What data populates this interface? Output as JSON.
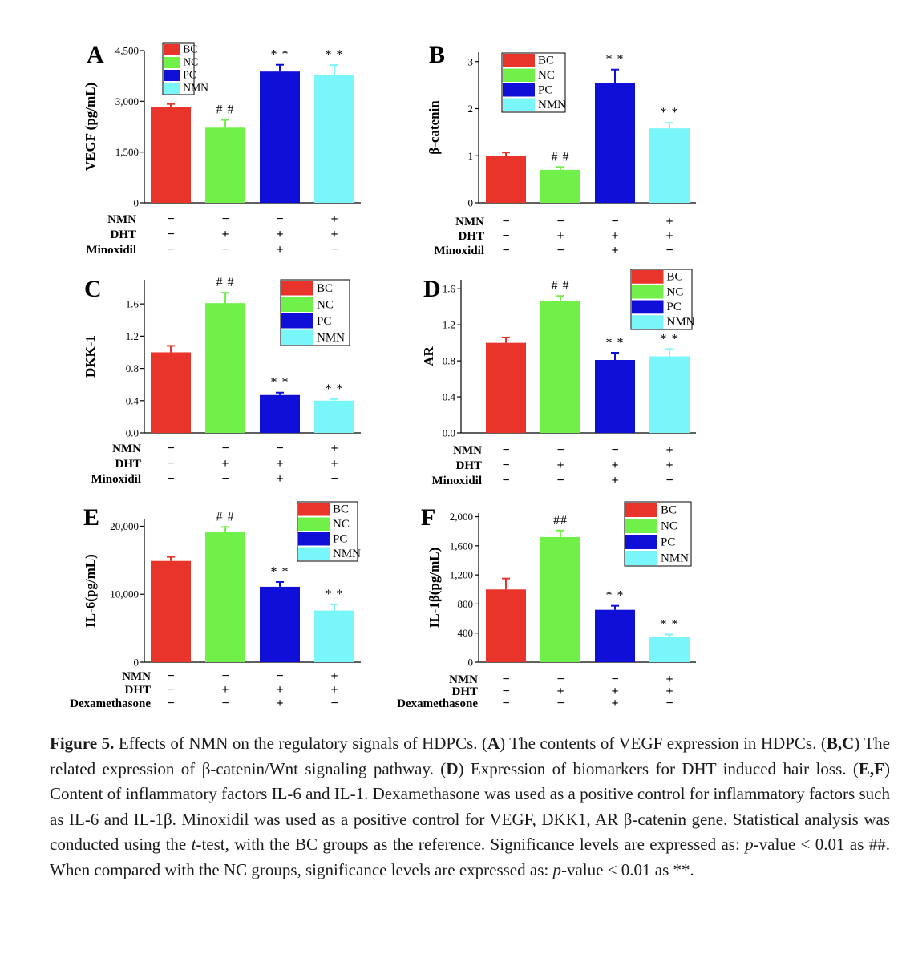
{
  "group_colors": {
    "BC": "#e8342a",
    "NC": "#72f04a",
    "PC": "#0f0fd8",
    "NMN": "#78f6fa"
  },
  "chart_data": [
    {
      "type": "bar",
      "panel": "A",
      "title": "",
      "ylabel": "VEGF (pg/mL)",
      "ylim": [
        0,
        4500
      ],
      "yticks": [
        0,
        1500,
        3000,
        4500
      ],
      "ytick_labels": [
        "0",
        "1,500",
        "3,000",
        "4,500"
      ],
      "categories": [
        "BC",
        "NC",
        "PC",
        "NMN"
      ],
      "values": [
        2820,
        2220,
        3880,
        3790
      ],
      "errors": [
        100,
        230,
        200,
        280
      ],
      "marks": [
        "",
        "# #",
        "* *",
        "* *"
      ],
      "legend": [
        "BC",
        "NC",
        "PC",
        "NMN"
      ],
      "legend_position": "top-left",
      "conditions": [
        {
          "label": "NMN",
          "values": [
            "−",
            "−",
            "−",
            "+"
          ]
        },
        {
          "label": "DHT",
          "values": [
            "−",
            "+",
            "+",
            "+"
          ]
        },
        {
          "label": "Minoxidil",
          "values": [
            "−",
            "−",
            "+",
            "−"
          ]
        }
      ]
    },
    {
      "type": "bar",
      "panel": "B",
      "title": "",
      "ylabel": "β-catenin",
      "ylim": [
        0,
        3.2
      ],
      "yticks": [
        0,
        1,
        2,
        3
      ],
      "ytick_labels": [
        "0",
        "1",
        "2",
        "3"
      ],
      "categories": [
        "BC",
        "NC",
        "PC",
        "NMN"
      ],
      "values": [
        1.0,
        0.7,
        2.55,
        1.58
      ],
      "errors": [
        0.07,
        0.06,
        0.28,
        0.12
      ],
      "marks": [
        "",
        "# #",
        "* *",
        "* *"
      ],
      "legend": [
        "BC",
        "NC",
        "PC",
        "NMN"
      ],
      "legend_position": "top-left",
      "conditions": [
        {
          "label": "NMN",
          "values": [
            "−",
            "−",
            "−",
            "+"
          ]
        },
        {
          "label": "DHT",
          "values": [
            "−",
            "+",
            "+",
            "+"
          ]
        },
        {
          "label": "Minoxidil",
          "values": [
            "−",
            "−",
            "+",
            "−"
          ]
        }
      ]
    },
    {
      "type": "bar",
      "panel": "C",
      "title": "",
      "ylabel": "DKK-1",
      "ylim": [
        0,
        1.9
      ],
      "yticks": [
        0,
        0.4,
        0.8,
        1.2,
        1.6
      ],
      "ytick_labels": [
        "0.0",
        "0.4",
        "0.8",
        "1.2",
        "1.6"
      ],
      "categories": [
        "BC",
        "NC",
        "PC",
        "NMN"
      ],
      "values": [
        1.0,
        1.61,
        0.47,
        0.4
      ],
      "errors": [
        0.08,
        0.13,
        0.03,
        0.02
      ],
      "marks": [
        "",
        "# #",
        "* *",
        "* *"
      ],
      "legend": [
        "BC",
        "NC",
        "PC",
        "NMN"
      ],
      "legend_position": "top-right",
      "conditions": [
        {
          "label": "NMN",
          "values": [
            "−",
            "−",
            "−",
            "+"
          ]
        },
        {
          "label": "DHT",
          "values": [
            "−",
            "+",
            "+",
            "+"
          ]
        },
        {
          "label": "Minoxidil",
          "values": [
            "−",
            "−",
            "+",
            "−"
          ]
        }
      ]
    },
    {
      "type": "bar",
      "panel": "D",
      "title": "",
      "ylabel": "AR",
      "ylim": [
        0,
        1.7
      ],
      "yticks": [
        0,
        0.4,
        0.8,
        1.2,
        1.6
      ],
      "ytick_labels": [
        "0.0",
        "0.4",
        "0.8",
        "1.2",
        "1.6"
      ],
      "categories": [
        "BC",
        "NC",
        "PC",
        "NMN"
      ],
      "values": [
        1.0,
        1.46,
        0.81,
        0.85
      ],
      "errors": [
        0.06,
        0.06,
        0.08,
        0.08
      ],
      "marks": [
        "",
        "# #",
        "* *",
        "* *"
      ],
      "legend": [
        "BC",
        "NC",
        "PC",
        "NMN"
      ],
      "legend_position": "top-right",
      "conditions": [
        {
          "label": "NMN",
          "values": [
            "−",
            "−",
            "−",
            "+"
          ]
        },
        {
          "label": "DHT",
          "values": [
            "−",
            "+",
            "+",
            "+"
          ]
        },
        {
          "label": "Minoxidil",
          "values": [
            "−",
            "−",
            "+",
            "−"
          ]
        }
      ]
    },
    {
      "type": "bar",
      "panel": "E",
      "title": "",
      "ylabel": "IL-6(pg/mL)",
      "ylim": [
        0,
        21000
      ],
      "yticks": [
        0,
        10000,
        20000
      ],
      "ytick_labels": [
        "0",
        "10,000",
        "20,000"
      ],
      "categories": [
        "BC",
        "NC",
        "PC",
        "NMN"
      ],
      "values": [
        14900,
        19200,
        11100,
        7600
      ],
      "errors": [
        600,
        700,
        700,
        900
      ],
      "marks": [
        "",
        "# #",
        "* *",
        "* *"
      ],
      "legend": [
        "BC",
        "NC",
        "PC",
        "NMN"
      ],
      "legend_position": "top-right",
      "conditions": [
        {
          "label": "NMN",
          "values": [
            "−",
            "−",
            "−",
            "+"
          ]
        },
        {
          "label": "DHT",
          "values": [
            "−",
            "+",
            "+",
            "+"
          ]
        },
        {
          "label": "Dexamethasone",
          "values": [
            "−",
            "−",
            "+",
            "−"
          ]
        }
      ]
    },
    {
      "type": "bar",
      "panel": "F",
      "title": "",
      "ylabel": "IL-1β(pg/mL)",
      "ylim": [
        0,
        2050
      ],
      "yticks": [
        0,
        400,
        800,
        1200,
        1600,
        2000
      ],
      "ytick_labels": [
        "0",
        "400",
        "800",
        "1,200",
        "1,600",
        "2,000"
      ],
      "categories": [
        "BC",
        "NC",
        "PC",
        "NMN"
      ],
      "values": [
        1000,
        1720,
        720,
        350
      ],
      "errors": [
        150,
        90,
        55,
        30
      ],
      "marks": [
        "",
        "##",
        "* *",
        "* *"
      ],
      "legend": [
        "BC",
        "NC",
        "PC",
        "NMN"
      ],
      "legend_position": "top-right",
      "conditions": [
        {
          "label": "NMN",
          "values": [
            "−",
            "−",
            "−",
            "+"
          ]
        },
        {
          "label": "DHT",
          "values": [
            "−",
            "+",
            "+",
            "+"
          ]
        },
        {
          "label": "Dexamethasone",
          "values": [
            "−",
            "−",
            "+",
            "−"
          ]
        }
      ]
    }
  ],
  "caption": {
    "label": "Figure 5.",
    "parts": [
      " Effects of NMN on the regulatory signals of HDPCs. (",
      "A",
      ") The contents of VEGF expression in HDPCs. (",
      "B,C",
      ") The related expression of β-catenin/Wnt signaling pathway. (",
      "D",
      ") Expression of biomarkers for DHT induced hair loss. (",
      "E,F",
      ") Content of inflammatory factors IL-6 and IL-1. Dexamethasone was used as a positive control for inflammatory factors such as IL-6 and IL-1β. Minoxidil was used as a positive control for VEGF, DKK1, AR β-catenin gene. Statistical analysis was conducted using the ",
      "t",
      "-test, with the BC groups as the reference. Significance levels are expressed as: ",
      "p",
      "-value < 0.01 as ##. When compared with the NC groups, significance levels are expressed as: ",
      "p",
      "-value < 0.01 as **."
    ]
  }
}
